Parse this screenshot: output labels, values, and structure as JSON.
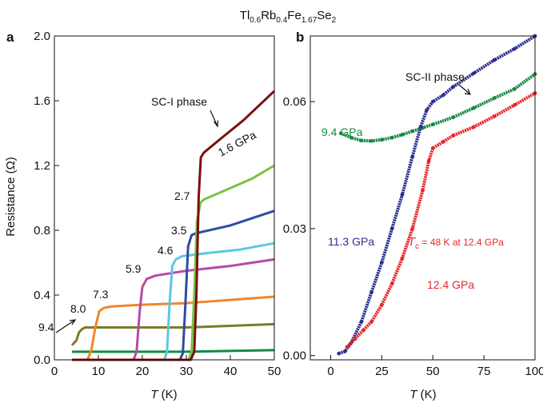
{
  "figure": {
    "title": {
      "base": "Tl",
      "sub1": "0.6",
      "mid1": "Rb",
      "sub2": "0.4",
      "mid2": "Fe",
      "sub3": "1.67",
      "mid3": "Se",
      "sub4": "2"
    }
  },
  "chart_data": [
    {
      "type": "line",
      "panel_label": "a",
      "xlabel": {
        "var": "T",
        "unit": " (K)"
      },
      "ylabel": "Resistance (Ω)",
      "xlim": [
        0,
        50
      ],
      "ylim": [
        0,
        2.0
      ],
      "xticks": [
        0,
        10,
        20,
        30,
        40,
        50
      ],
      "yticks": [
        0.0,
        0.4,
        0.8,
        1.2,
        1.6,
        2.0
      ],
      "ytick_labels": [
        "0.0",
        "0.4",
        "0.8",
        "1.2",
        "1.6",
        "2.0"
      ],
      "annotation": "SC-I phase",
      "series": [
        {
          "name": "1.6 GPa",
          "color": "#7a1010",
          "x": [
            4,
            31,
            31.8,
            32.3,
            32.8,
            33.3,
            34,
            38,
            43,
            50
          ],
          "y": [
            0.0,
            0.0,
            0.05,
            0.4,
            1.0,
            1.25,
            1.28,
            1.37,
            1.48,
            1.66
          ]
        },
        {
          "name": "2.7",
          "color": "#7ac143",
          "x": [
            4,
            30.5,
            31.2,
            31.8,
            32.4,
            33.2,
            34,
            40,
            45,
            50
          ],
          "y": [
            0.0,
            0.0,
            0.05,
            0.4,
            0.85,
            0.97,
            0.99,
            1.06,
            1.12,
            1.2
          ]
        },
        {
          "name": "3.5",
          "color": "#2b4ea2",
          "x": [
            4,
            28.5,
            29.2,
            29.8,
            30.4,
            31.2,
            32,
            40,
            50
          ],
          "y": [
            0.0,
            0.0,
            0.04,
            0.35,
            0.7,
            0.77,
            0.78,
            0.83,
            0.92
          ]
        },
        {
          "name": "4.6",
          "color": "#5bc8e0",
          "x": [
            4,
            25,
            25.6,
            26.2,
            26.8,
            27.6,
            29,
            35,
            42,
            50
          ],
          "y": [
            0.0,
            0.0,
            0.05,
            0.35,
            0.58,
            0.62,
            0.64,
            0.66,
            0.68,
            0.72
          ]
        },
        {
          "name": "5.9",
          "color": "#b74aa6",
          "x": [
            4,
            18,
            18.7,
            19.4,
            20,
            21,
            23,
            30,
            40,
            50
          ],
          "y": [
            0.0,
            0.0,
            0.05,
            0.3,
            0.45,
            0.5,
            0.52,
            0.55,
            0.58,
            0.62
          ]
        },
        {
          "name": "7.3",
          "color": "#f0872a",
          "x": [
            4,
            7.5,
            8.4,
            9.3,
            10.2,
            11.2,
            13,
            20,
            30,
            40,
            50
          ],
          "y": [
            0.0,
            0.0,
            0.06,
            0.2,
            0.3,
            0.32,
            0.33,
            0.34,
            0.35,
            0.37,
            0.39
          ]
        },
        {
          "name": "8.0",
          "color": "#7b7b2a",
          "x": [
            4,
            5,
            5.6,
            6.3,
            7,
            8,
            10,
            20,
            30,
            40,
            50
          ],
          "y": [
            0.09,
            0.12,
            0.17,
            0.19,
            0.2,
            0.2,
            0.2,
            0.2,
            0.2,
            0.21,
            0.22
          ]
        },
        {
          "name": "9.4",
          "color": "#148a45",
          "x": [
            4,
            10,
            20,
            30,
            40,
            50
          ],
          "y": [
            0.05,
            0.05,
            0.05,
            0.05,
            0.055,
            0.06
          ]
        }
      ],
      "label_text": {
        "p16": "1.6 GPa",
        "p27": "2.7",
        "p35": "3.5",
        "p46": "4.6",
        "p59": "5.9",
        "p73": "7.3",
        "p80": "8.0",
        "p94": "9.4"
      }
    },
    {
      "type": "scatter",
      "panel_label": "b",
      "xlabel": {
        "var": "T",
        "unit": " (K)"
      },
      "xlim": [
        -10,
        100
      ],
      "ylim": [
        -0.001,
        0.0755
      ],
      "xticks": [
        0,
        25,
        50,
        75,
        100
      ],
      "yticks": [
        0.0,
        0.03,
        0.06
      ],
      "ytick_labels": [
        "0.00",
        "0.03",
        "0.06"
      ],
      "annotation": "SC-II phase",
      "tc_note": {
        "symbol": "T",
        "sub": "c",
        "rest": " = 48 K at 12.4 GPa"
      },
      "series": [
        {
          "name": "9.4 GPa",
          "color": "#148a45",
          "x": [
            5,
            10,
            15,
            20,
            25,
            30,
            35,
            40,
            45,
            50,
            60,
            70,
            80,
            90,
            100
          ],
          "y": [
            0.0525,
            0.0515,
            0.0508,
            0.0507,
            0.051,
            0.0515,
            0.0522,
            0.053,
            0.0538,
            0.0546,
            0.0563,
            0.0585,
            0.0608,
            0.063,
            0.0665
          ]
        },
        {
          "name": "11.3 GPa",
          "color": "#2b2f8f",
          "x": [
            4,
            7,
            10,
            15,
            20,
            25,
            30,
            35,
            40,
            44,
            47,
            50,
            55,
            60,
            70,
            80,
            90,
            100
          ],
          "y": [
            0.0005,
            0.001,
            0.003,
            0.008,
            0.015,
            0.022,
            0.03,
            0.038,
            0.047,
            0.054,
            0.058,
            0.06,
            0.0615,
            0.0635,
            0.0667,
            0.0698,
            0.0725,
            0.0755
          ]
        },
        {
          "name": "12.4 GPa",
          "color": "#e8262b",
          "x": [
            8,
            12,
            16,
            20,
            25,
            30,
            35,
            40,
            45,
            48,
            50,
            55,
            60,
            70,
            80,
            90,
            100
          ],
          "y": [
            0.002,
            0.004,
            0.006,
            0.008,
            0.012,
            0.017,
            0.023,
            0.03,
            0.039,
            0.046,
            0.049,
            0.0505,
            0.052,
            0.054,
            0.0565,
            0.0592,
            0.062
          ]
        }
      ]
    }
  ]
}
